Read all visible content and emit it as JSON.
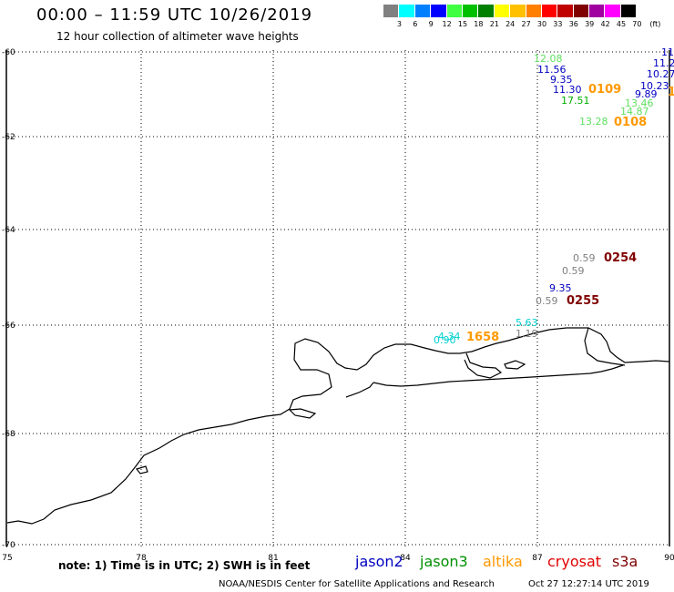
{
  "header": {
    "title": "00:00 – 11:59 UTC 10/26/2019",
    "subtitle": "12 hour collection of altimeter wave heights"
  },
  "legend": {
    "unit_label": "(ft)",
    "levels": [
      {
        "label": "3",
        "color": "#808080"
      },
      {
        "label": "6",
        "color": "#00ffff"
      },
      {
        "label": "9",
        "color": "#0080ff"
      },
      {
        "label": "12",
        "color": "#0000ff"
      },
      {
        "label": "15",
        "color": "#40ff40"
      },
      {
        "label": "18",
        "color": "#00c000"
      },
      {
        "label": "21",
        "color": "#008000"
      },
      {
        "label": "24",
        "color": "#ffff00"
      },
      {
        "label": "27",
        "color": "#ffc000"
      },
      {
        "label": "30",
        "color": "#ff8000"
      },
      {
        "label": "33",
        "color": "#ff0000"
      },
      {
        "label": "36",
        "color": "#c00000"
      },
      {
        "label": "39",
        "color": "#800000"
      },
      {
        "label": "42",
        "color": "#a000a0"
      },
      {
        "label": "45",
        "color": "#ff00ff"
      },
      {
        "label": "70",
        "color": "#000000"
      }
    ]
  },
  "map": {
    "lon_ticks": [
      "75",
      "78",
      "81",
      "84",
      "87",
      "90"
    ],
    "lat_ticks": [
      "-60",
      "-62",
      "-64",
      "-66",
      "-68",
      "-70"
    ],
    "points": [
      {
        "text": "12.08",
        "color": "#60e060"
      },
      {
        "text": "11.56",
        "color": "#0000c0"
      },
      {
        "text": "9.35",
        "color": "#0000c0"
      },
      {
        "text": "11.30",
        "color": "#0000c0"
      },
      {
        "text": "17.51",
        "color": "#00b000"
      },
      {
        "text": "0109",
        "color": "#ff9900"
      },
      {
        "text": "13.28",
        "color": "#60e060"
      },
      {
        "text": "0108",
        "color": "#ff9900"
      },
      {
        "text": "14.87",
        "color": "#60e060"
      },
      {
        "text": "13.46",
        "color": "#60e060"
      },
      {
        "text": "9.89",
        "color": "#0000c0"
      },
      {
        "text": "10.23",
        "color": "#0000c0"
      },
      {
        "text": "10.27",
        "color": "#0000c0"
      },
      {
        "text": "11.2",
        "color": "#0000c0"
      },
      {
        "text": "11",
        "color": "#0000c0"
      },
      {
        "text": "1",
        "color": "#ff9900"
      },
      {
        "text": "0.59",
        "color": "#808080"
      },
      {
        "text": "0254",
        "color": "#800000"
      },
      {
        "text": "0.59",
        "color": "#808080"
      },
      {
        "text": "9.35",
        "color": "#0000c0"
      },
      {
        "text": "0.59",
        "color": "#808080"
      },
      {
        "text": "0255",
        "color": "#800000"
      },
      {
        "text": "5.63",
        "color": "#00d0d0"
      },
      {
        "text": "4.34",
        "color": "#00d0d0"
      },
      {
        "text": "0.90",
        "color": "#00d0d0"
      },
      {
        "text": "1.19",
        "color": "#808080"
      },
      {
        "text": "1658",
        "color": "#ff9900"
      }
    ]
  },
  "footer": {
    "note": "note: 1) Time is in UTC; 2) SWH is in feet",
    "satellites": [
      {
        "name": "jason2",
        "color": "#0000c0"
      },
      {
        "name": "jason3",
        "color": "#009000"
      },
      {
        "name": "altika",
        "color": "#ff9900"
      },
      {
        "name": "cryosat",
        "color": "#e00000"
      },
      {
        "name": "s3a",
        "color": "#800000"
      }
    ],
    "credit": "NOAA/NESDIS Center for Satellite Applications and Research",
    "timestamp": "Oct 27 12:27:14 UTC 2019"
  }
}
